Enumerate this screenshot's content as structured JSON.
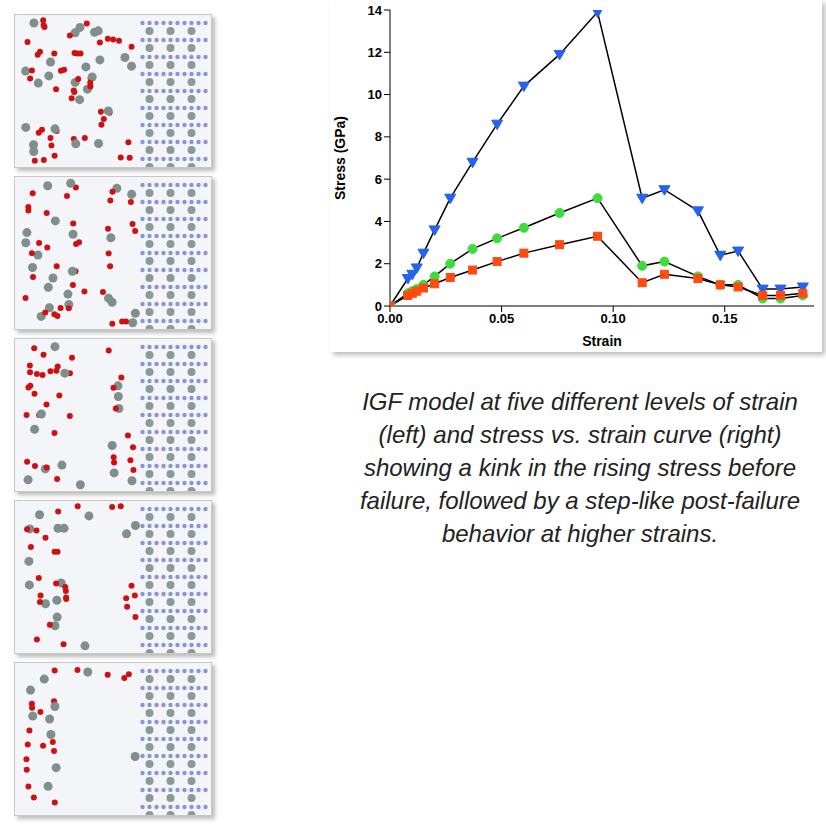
{
  "chart_data": {
    "type": "line",
    "x_label": "Strain",
    "y_label": "Stress (GPa)",
    "x": [
      0,
      0.008,
      0.01,
      0.012,
      0.015,
      0.02,
      0.027,
      0.037,
      0.048,
      0.06,
      0.076,
      0.093,
      0.113,
      0.123,
      0.138,
      0.148,
      0.156,
      0.167,
      0.175,
      0.185
    ],
    "series": [
      {
        "color": "#2563eb",
        "marker": "triangle-down",
        "values": [
          0,
          1.3,
          1.5,
          1.8,
          2.5,
          3.6,
          5.1,
          6.8,
          8.6,
          10.4,
          11.9,
          13.9,
          5.1,
          5.5,
          4.5,
          2.4,
          2.6,
          0.8,
          0.8,
          0.9
        ]
      },
      {
        "color": "#3ddc3d",
        "marker": "circle",
        "values": [
          0,
          0.6,
          0.7,
          0.8,
          1.0,
          1.4,
          2.0,
          2.7,
          3.2,
          3.7,
          4.4,
          5.1,
          1.9,
          2.1,
          1.4,
          1.0,
          1.0,
          0.35,
          0.35,
          0.5
        ]
      },
      {
        "color": "#ff4a12",
        "marker": "square",
        "values": [
          0,
          0.5,
          0.6,
          0.7,
          0.85,
          1.05,
          1.35,
          1.7,
          2.1,
          2.5,
          2.9,
          3.3,
          1.1,
          1.5,
          1.3,
          1.0,
          0.9,
          0.5,
          0.5,
          0.6
        ]
      }
    ],
    "xlim": [
      0,
      0.19
    ],
    "xticks": [
      {
        "value": 0,
        "label": "0.00"
      },
      {
        "value": 0.05,
        "label": "0.05"
      },
      {
        "value": 0.1,
        "label": "0.10"
      },
      {
        "value": 0.15,
        "label": "0.15"
      }
    ],
    "ylim": [
      0,
      14
    ],
    "yticks": [
      0,
      2,
      4,
      6,
      8,
      10,
      12,
      14
    ],
    "grid": false,
    "caption": "IGF model at five different levels of strain (left) and stress vs. strain curve (right) showing a kink in the rising stress before failure, followed by a step-like post-failure behavior at higher strains."
  }
}
